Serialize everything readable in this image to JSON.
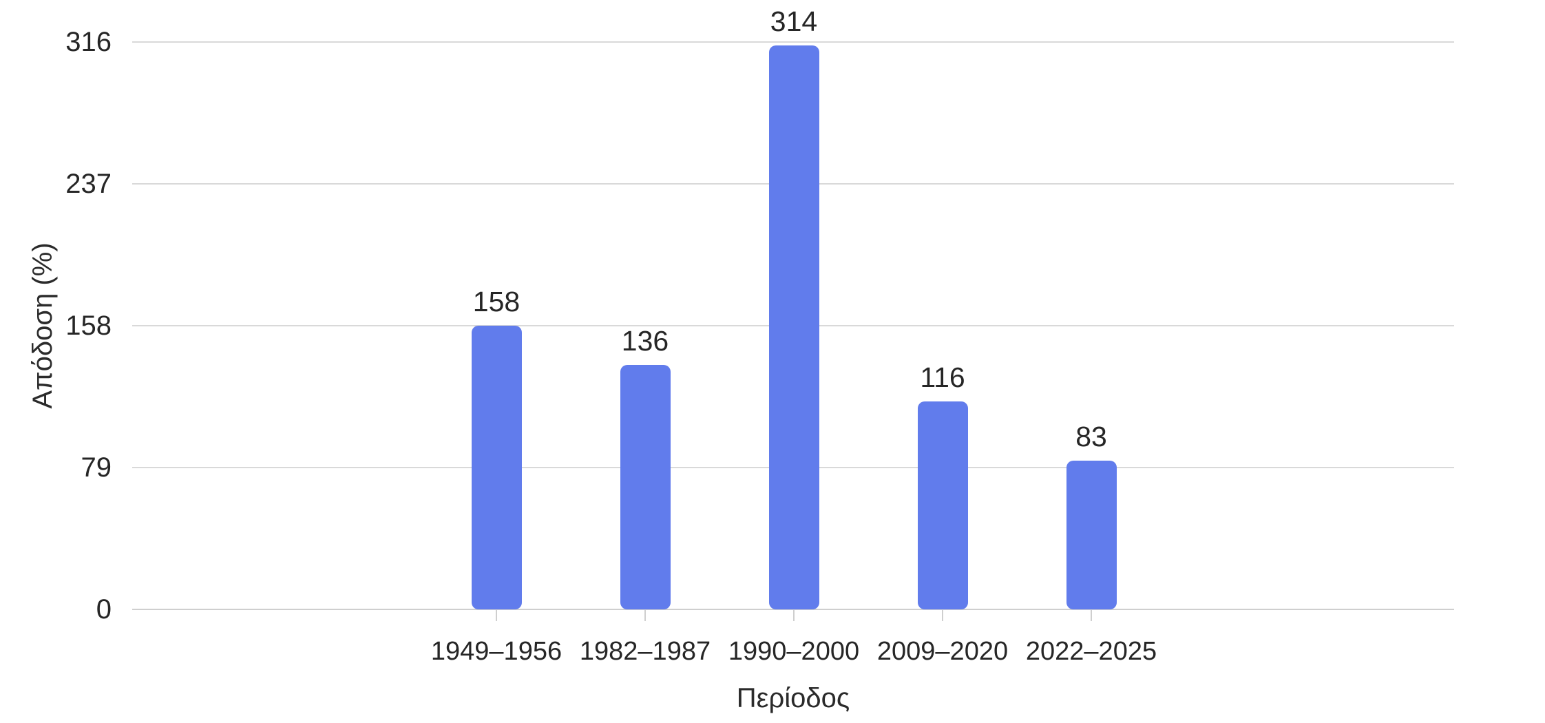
{
  "chart_data": {
    "type": "bar",
    "title": "",
    "xlabel": "Περίοδος",
    "ylabel": "Απόδοση (%)",
    "categories": [
      "1949–1956",
      "1982–1987",
      "1990–2000",
      "2009–2020",
      "2022–2025"
    ],
    "values": [
      158,
      136,
      314,
      116,
      83
    ],
    "value_labels": [
      "158",
      "136",
      "314",
      "116",
      "83"
    ],
    "yticks": [
      0,
      79,
      158,
      237,
      316
    ],
    "ytick_labels": [
      "0",
      "79",
      "158",
      "237",
      "316"
    ],
    "ylim": [
      0,
      316
    ],
    "grid": true,
    "legend": false,
    "colors": {
      "bar": "#617CEC",
      "gridline": "#D9D9D9",
      "axis_line": "#CFCFCF",
      "tick_mark": "#CFCFCF",
      "tick_label": "#262626",
      "value_label": "#262626",
      "axis_title": "#2B2B2B",
      "background": "#FFFFFF"
    }
  }
}
